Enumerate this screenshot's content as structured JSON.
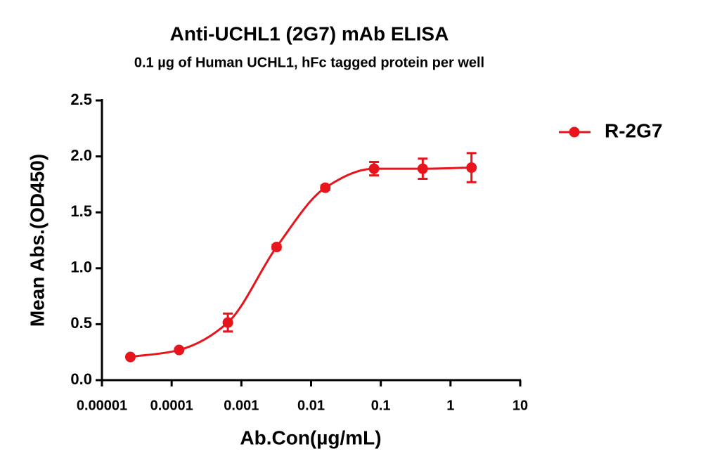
{
  "chart_data": {
    "type": "line",
    "title": "Anti-UCHL1 (2G7) mAb ELISA",
    "subtitle": "0.1 µg of Human UCHL1, hFc tagged protein per well",
    "x_label": "Ab.Con(µg/mL)",
    "y_label": "Mean Abs.(OD450)",
    "xscale": "log",
    "x": [
      2.56e-05,
      0.000128,
      0.00064,
      0.0032,
      0.016,
      0.08,
      0.4,
      2
    ],
    "series": [
      {
        "name": "R-2G7",
        "color": "#e8141b",
        "values": [
          0.207,
          0.27,
          0.515,
          1.19,
          1.72,
          1.89,
          1.89,
          1.9
        ],
        "errors": [
          0.01,
          0.01,
          0.08,
          0.02,
          0.02,
          0.06,
          0.09,
          0.13
        ]
      }
    ],
    "xlim": [
      1e-05,
      10
    ],
    "xticks": [
      1e-05,
      0.0001,
      0.001,
      0.01,
      0.1,
      1,
      10
    ],
    "ylim": [
      0,
      2.5
    ],
    "yticks": [
      {
        "value": 0,
        "label": "0.0"
      },
      0.5,
      {
        "value": 1,
        "label": "1.0"
      },
      1.5,
      {
        "value": 2,
        "label": "2.0"
      },
      2.5
    ],
    "legend": "right"
  }
}
